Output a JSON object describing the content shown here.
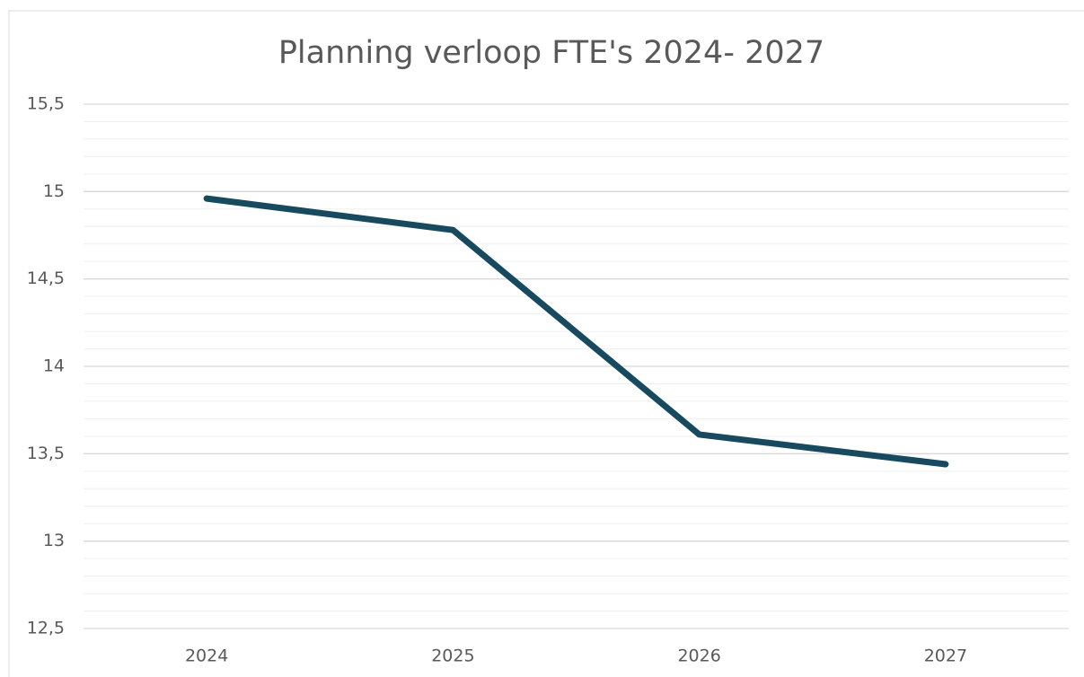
{
  "chart_data": {
    "type": "line",
    "title": "Planning verloop FTE's 2024- 2027",
    "categories": [
      "2024",
      "2025",
      "2026",
      "2027"
    ],
    "series": [
      {
        "name": "FTE",
        "color": "#174a5f",
        "values": [
          14.96,
          14.78,
          13.61,
          13.44
        ]
      }
    ],
    "ylim": [
      12.5,
      15.5
    ],
    "yticks": [
      {
        "value": 12.5,
        "label": "12,5"
      },
      13,
      {
        "value": 13.5,
        "label": "13,5"
      },
      14,
      {
        "value": 14.5,
        "label": "14,5"
      },
      15,
      {
        "value": 15.5,
        "label": "15,5"
      }
    ],
    "minor_yticks": [
      12.6,
      12.7,
      12.8,
      12.9,
      13.1,
      13.2,
      13.3,
      13.4,
      13.6,
      13.7,
      13.8,
      13.9,
      14.1,
      14.2,
      14.3,
      14.4,
      14.6,
      14.7,
      14.8,
      14.9,
      15.1,
      15.2,
      15.3,
      15.4
    ],
    "grid": true,
    "legend": false
  }
}
